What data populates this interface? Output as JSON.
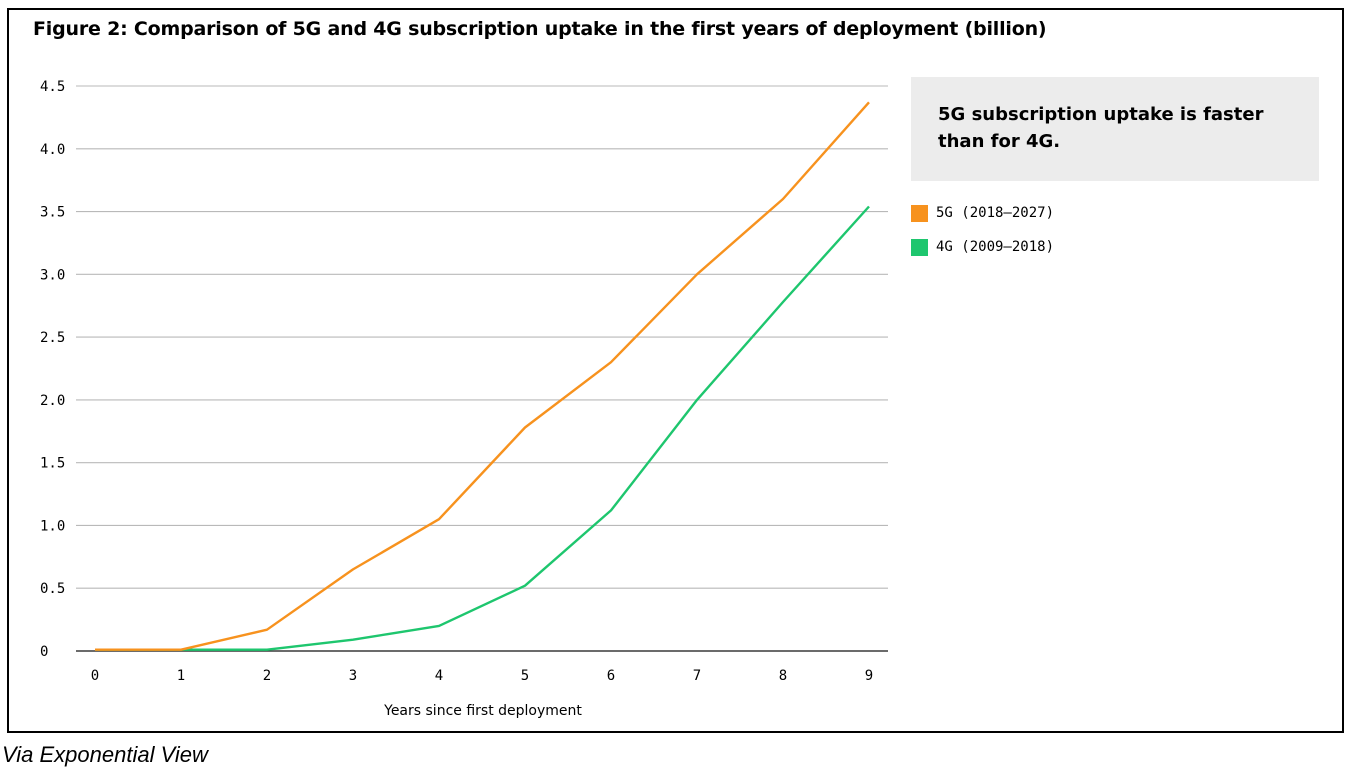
{
  "chart_data": {
    "type": "line",
    "title": "Figure 2: Comparison of 5G and 4G subscription uptake in the first years of deployment (billion)",
    "xlabel": "Years since first deployment",
    "ylabel": "",
    "x": [
      0,
      1,
      2,
      3,
      4,
      5,
      6,
      7,
      8,
      9
    ],
    "x_tick_labels": [
      "0",
      "1",
      "2",
      "3",
      "4",
      "5",
      "6",
      "7",
      "8",
      "9"
    ],
    "y_tick_labels": [
      "0",
      "0.5",
      "1.0",
      "1.5",
      "2.0",
      "2.5",
      "3.0",
      "3.5",
      "4.0",
      "4.5"
    ],
    "y_ticks": [
      0,
      0.5,
      1.0,
      1.5,
      2.0,
      2.5,
      3.0,
      3.5,
      4.0,
      4.5
    ],
    "xlim": [
      0,
      9
    ],
    "ylim": [
      0,
      4.5
    ],
    "grid": "horizontal",
    "legend_position": "right",
    "series": [
      {
        "name": "5G (2018–2027)",
        "color": "#f7921e",
        "values": [
          0.01,
          0.01,
          0.17,
          0.65,
          1.05,
          1.78,
          2.3,
          3.0,
          3.6,
          4.37
        ]
      },
      {
        "name": "4G (2009–2018)",
        "color": "#1ec66e",
        "values": [
          0.01,
          0.01,
          0.01,
          0.09,
          0.2,
          0.52,
          1.12,
          2.0,
          2.78,
          3.54
        ]
      }
    ],
    "annotation": "5G subscription uptake is faster than for 4G."
  },
  "caption": "Via Exponential View"
}
